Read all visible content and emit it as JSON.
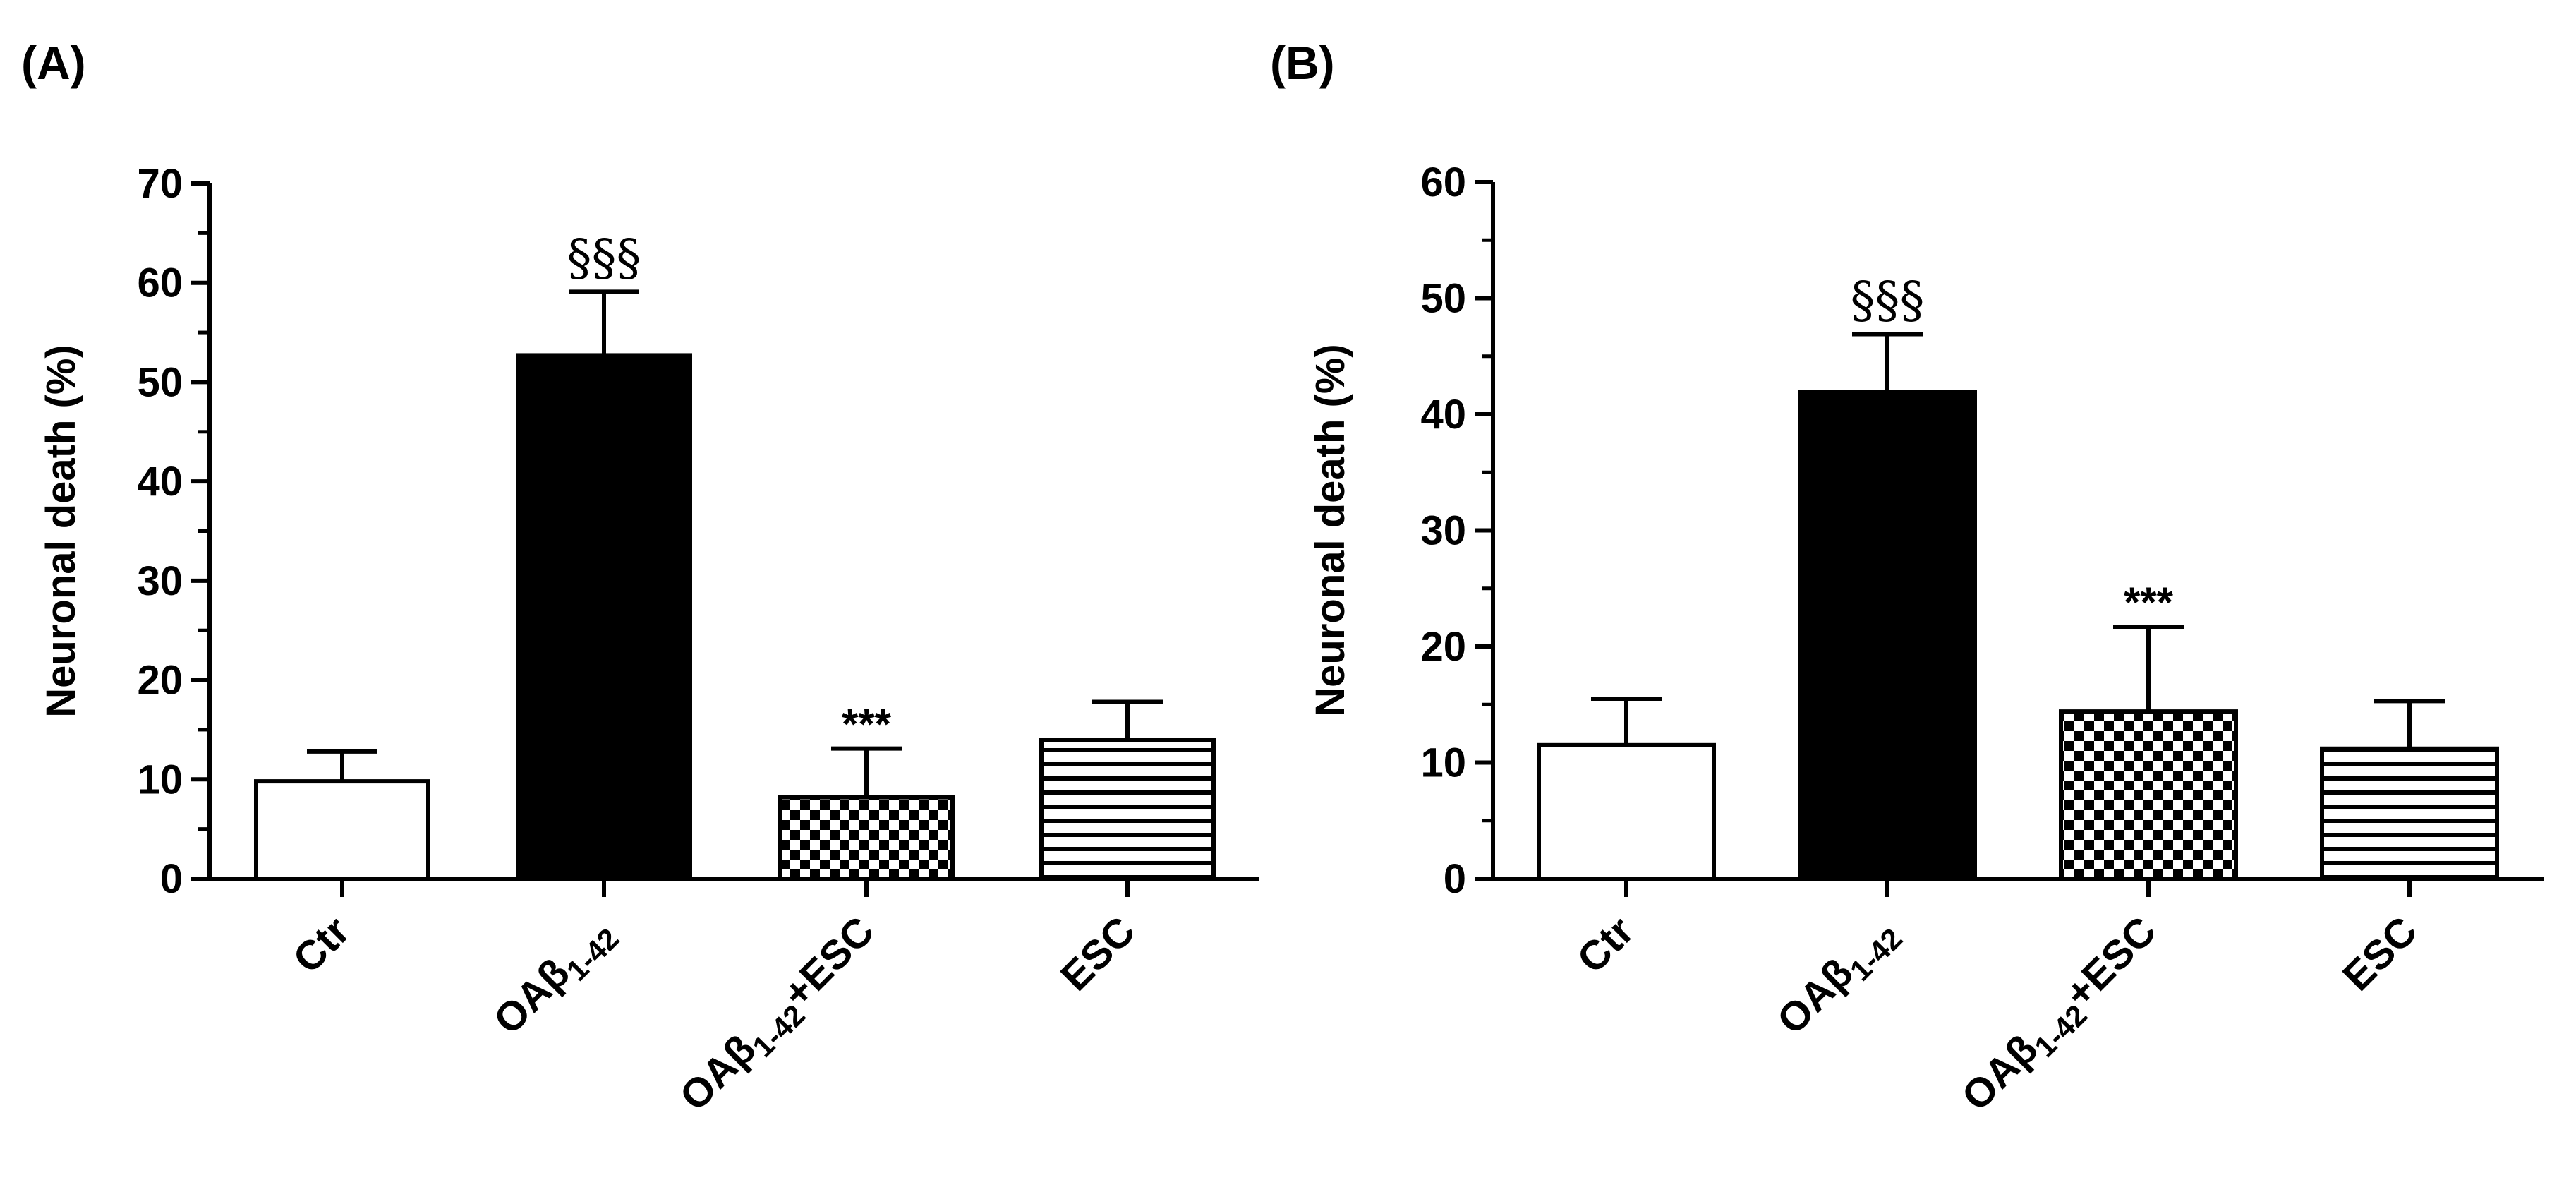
{
  "colors": {
    "ink": "#000000",
    "background": "#ffffff"
  },
  "chart_data": [
    {
      "panel": "(A)",
      "type": "bar",
      "title": "",
      "xlabel": "",
      "ylabel": "Neuronal death (%)",
      "ylim": [
        0,
        70
      ],
      "yticks": [
        0,
        10,
        20,
        30,
        40,
        50,
        60,
        70
      ],
      "grid": false,
      "categories": [
        {
          "label": "Ctr",
          "main": "Ctr",
          "sub": "",
          "suffix": "",
          "fill": "white"
        },
        {
          "label": "OAβ1-42",
          "main": "OAβ",
          "sub": "1-42",
          "suffix": "",
          "fill": "black"
        },
        {
          "label": "OAβ1-42+ESC",
          "main": "OAβ",
          "sub": "1-42",
          "suffix": "+ESC",
          "fill": "checker"
        },
        {
          "label": "ESC",
          "main": "ESC",
          "sub": "",
          "suffix": "",
          "fill": "stripes"
        }
      ],
      "values": [
        9.8,
        52.7,
        8.2,
        14.0
      ],
      "errors": [
        3.0,
        6.4,
        4.9,
        3.8
      ],
      "annotations": [
        "",
        "§§§",
        "***",
        ""
      ]
    },
    {
      "panel": "(B)",
      "type": "bar",
      "title": "",
      "xlabel": "",
      "ylabel": "Neuronal death (%)",
      "ylim": [
        0,
        60
      ],
      "yticks": [
        0,
        10,
        20,
        30,
        40,
        50,
        60
      ],
      "grid": false,
      "categories": [
        {
          "label": "Ctr",
          "main": "Ctr",
          "sub": "",
          "suffix": "",
          "fill": "white"
        },
        {
          "label": "OAβ1-42",
          "main": "OAβ",
          "sub": "1-42",
          "suffix": "",
          "fill": "black"
        },
        {
          "label": "OAβ1-42+ESC",
          "main": "OAβ",
          "sub": "1-42",
          "suffix": "+ESC",
          "fill": "checker"
        },
        {
          "label": "ESC",
          "main": "ESC",
          "sub": "",
          "suffix": "",
          "fill": "stripes"
        }
      ],
      "values": [
        11.5,
        41.9,
        14.4,
        11.2
      ],
      "errors": [
        4.0,
        5.0,
        7.3,
        4.1
      ],
      "annotations": [
        "",
        "§§§",
        "***",
        ""
      ]
    }
  ]
}
